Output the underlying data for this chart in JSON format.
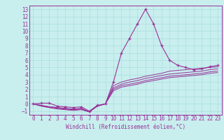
{
  "xlabel": "Windchill (Refroidissement éolien,°C)",
  "bg_color": "#c8eeee",
  "grid_color": "#aadddd",
  "line_color": "#993399",
  "xlim": [
    -0.5,
    23.5
  ],
  "ylim": [
    -1.5,
    13.5
  ],
  "xticks": [
    0,
    1,
    2,
    3,
    4,
    5,
    6,
    7,
    8,
    9,
    10,
    11,
    12,
    13,
    14,
    15,
    16,
    17,
    18,
    19,
    20,
    21,
    22,
    23
  ],
  "yticks": [
    -1,
    0,
    1,
    2,
    3,
    4,
    5,
    6,
    7,
    8,
    9,
    10,
    11,
    12,
    13
  ],
  "lines": [
    [
      0.0,
      0.1,
      0.1,
      -0.3,
      -0.4,
      -0.5,
      -0.4,
      -1.0,
      -0.2,
      0.0,
      3.0,
      7.0,
      9.0,
      11.0,
      13.0,
      11.0,
      8.0,
      6.0,
      5.3,
      5.0,
      4.7,
      4.8,
      5.1,
      5.3
    ],
    [
      0.0,
      -0.2,
      -0.4,
      -0.5,
      -0.6,
      -0.7,
      -0.6,
      -1.1,
      -0.3,
      0.0,
      2.5,
      3.0,
      3.3,
      3.5,
      3.8,
      4.0,
      4.2,
      4.5,
      4.6,
      4.7,
      4.8,
      4.9,
      5.0,
      5.1
    ],
    [
      0.0,
      -0.2,
      -0.4,
      -0.5,
      -0.7,
      -0.8,
      -0.7,
      -1.1,
      -0.3,
      0.0,
      2.2,
      2.7,
      3.0,
      3.2,
      3.5,
      3.7,
      3.9,
      4.1,
      4.2,
      4.3,
      4.4,
      4.5,
      4.7,
      4.8
    ],
    [
      0.0,
      -0.3,
      -0.5,
      -0.6,
      -0.7,
      -0.8,
      -0.7,
      -1.1,
      -0.3,
      0.0,
      2.0,
      2.5,
      2.7,
      2.9,
      3.2,
      3.4,
      3.6,
      3.8,
      3.9,
      4.0,
      4.1,
      4.2,
      4.4,
      4.5
    ],
    [
      0.0,
      -0.3,
      -0.5,
      -0.7,
      -0.8,
      -0.9,
      -0.8,
      -1.1,
      -0.3,
      0.0,
      1.8,
      2.3,
      2.5,
      2.7,
      3.0,
      3.2,
      3.4,
      3.6,
      3.7,
      3.8,
      3.9,
      4.0,
      4.2,
      4.3
    ]
  ],
  "figsize": [
    3.2,
    2.0
  ],
  "dpi": 100,
  "tick_fontsize": 5.5,
  "xlabel_fontsize": 5.5
}
